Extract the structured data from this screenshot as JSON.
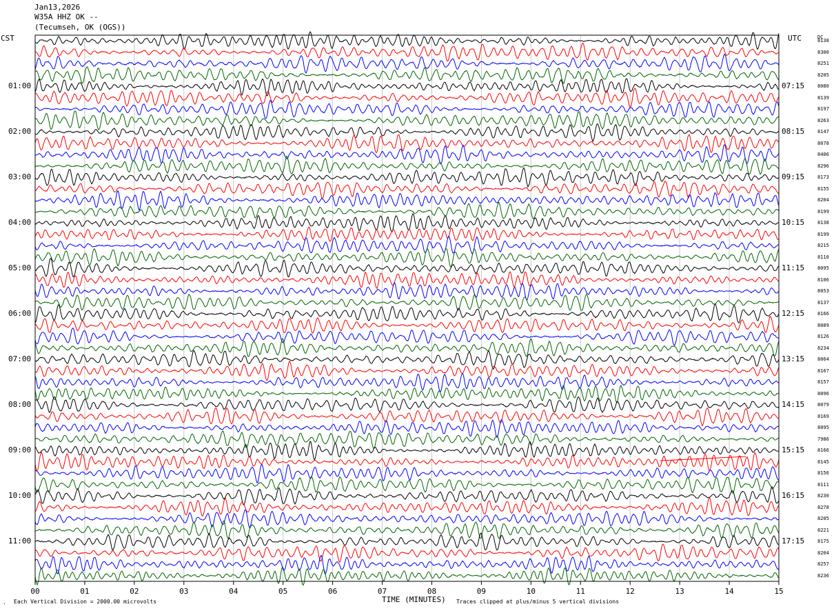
{
  "header": {
    "date": "Jan13,2026",
    "station": "W35A HHZ OK --",
    "location": "(Tecumseh, OK (OGS))"
  },
  "left_axis_label": "CST",
  "right_axis_label": "UTC",
  "dc_label": "DC",
  "footer": {
    "vertical_division": "Each Vertical Division = 2000.00 microvolts",
    "xlabel": "TIME (MINUTES)",
    "clip_note": "Traces clipped at plus/minus 5 vertical divisions"
  },
  "colors": {
    "trace_cycle": [
      "#000000",
      "#ff0000",
      "#0000ff",
      "#006400"
    ],
    "grid": "#c8c8c8",
    "frame": "#000000"
  },
  "chart_data": {
    "type": "line",
    "title": "",
    "xlabel": "TIME (MINUTES)",
    "ylabel": "",
    "xlim": [
      0,
      15
    ],
    "x_ticks": [
      "00",
      "01",
      "02",
      "03",
      "04",
      "05",
      "06",
      "07",
      "08",
      "09",
      "10",
      "11",
      "12",
      "13",
      "14",
      "15"
    ],
    "minutes_per_trace": 15,
    "trace_count": 48,
    "cst_labels": [
      "01:00",
      "02:00",
      "03:00",
      "04:00",
      "05:00",
      "06:00",
      "07:00",
      "08:00",
      "09:00",
      "10:00",
      "11:00"
    ],
    "utc_labels": [
      "07:15",
      "08:15",
      "09:15",
      "10:15",
      "11:15",
      "12:15",
      "13:15",
      "14:15",
      "15:15",
      "16:15",
      "17:15"
    ],
    "dc_offsets": [
      "8138",
      "8300",
      "8251",
      "8205",
      "8080",
      "8139",
      "8197",
      "8263",
      "8147",
      "8078",
      "8406",
      "8296",
      "8173",
      "8155",
      "8204",
      "8199",
      "8138",
      "8199",
      "8215",
      "8110",
      "8095",
      "8106",
      "8053",
      "8137",
      "8166",
      "8089",
      "8126",
      "8234",
      "8064",
      "8167",
      "8157",
      "8096",
      "8079",
      "8169",
      "8095",
      "7986",
      "8166",
      "8145",
      "8156",
      "8111",
      "8230",
      "8278",
      "8205",
      "8221",
      "8175",
      "8204",
      "8257",
      "8236"
    ],
    "grid": true,
    "legend": "none"
  }
}
